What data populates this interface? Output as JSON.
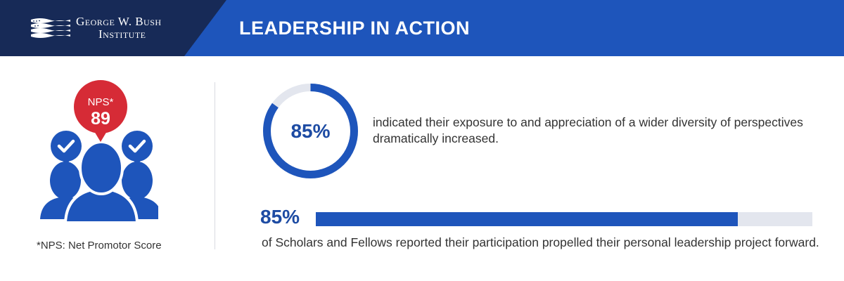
{
  "header": {
    "org_line_1": "George W. Bush",
    "org_line_2": "Institute",
    "title": "LEADERSHIP IN ACTION",
    "colors": {
      "navy": "#172a57",
      "blue": "#1e55bb"
    }
  },
  "nps": {
    "label": "NPS*",
    "score": "89",
    "footnote": "*NPS: Net Promotor Score",
    "icon": "people-group-with-checkmarks-icon",
    "colors": {
      "bubble": "#d62b36",
      "people": "#1e55bb"
    }
  },
  "stat_ring": {
    "value_label": "85%",
    "fraction": 0.85,
    "text": "indicated their exposure to and appreciation of a wider diversity of perspectives dramatically increased."
  },
  "stat_bar": {
    "value_label": "85%",
    "fraction": 0.85,
    "text": "of Scholars and Fellows reported their participation propelled their personal leadership project forward."
  },
  "colors": {
    "accent": "#1e55bb",
    "track": "#e3e6ee",
    "text": "#333333"
  }
}
